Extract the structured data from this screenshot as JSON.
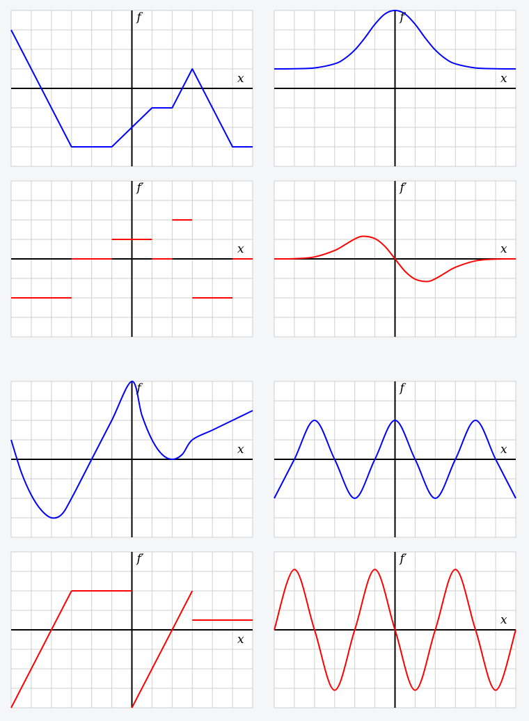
{
  "chart_data": [
    {
      "type": "line",
      "xlabel": "x",
      "ylabel": "f",
      "xlim": [
        -6,
        6
      ],
      "ylim": [
        -4,
        4
      ],
      "color": "#0000ff",
      "series": [
        {
          "x": [
            -6,
            -3,
            -1,
            1,
            2,
            3,
            5,
            6
          ],
          "y": [
            3,
            -3,
            -3,
            -1,
            -1,
            1,
            -3,
            -3
          ]
        }
      ]
    },
    {
      "type": "line",
      "xlabel": "x",
      "ylabel": "f",
      "xlim": [
        -6,
        6
      ],
      "ylim": [
        -4,
        4
      ],
      "color": "#0000ff",
      "series": [
        {
          "x": [
            -6,
            -5,
            -4,
            -3,
            -2.5,
            -2,
            -1.5,
            -1,
            -0.5,
            0,
            0.5,
            1,
            1.5,
            2,
            2.5,
            3,
            4,
            5,
            6
          ],
          "y": [
            1,
            1.01,
            1.05,
            1.26,
            1.53,
            1.97,
            2.59,
            3.29,
            3.82,
            4,
            3.82,
            3.29,
            2.59,
            1.97,
            1.53,
            1.26,
            1.05,
            1.01,
            1
          ]
        }
      ]
    },
    {
      "type": "line",
      "xlabel": "x",
      "ylabel": "f′",
      "xlim": [
        -6,
        6
      ],
      "ylim": [
        -4,
        4
      ],
      "color": "#ff0000",
      "series": [
        {
          "x": [
            -6,
            -3
          ],
          "y": [
            -2,
            -2
          ]
        },
        {
          "x": [
            -3,
            -1
          ],
          "y": [
            0,
            0
          ]
        },
        {
          "x": [
            -1,
            1
          ],
          "y": [
            1,
            1
          ]
        },
        {
          "x": [
            1,
            2
          ],
          "y": [
            0,
            0
          ]
        },
        {
          "x": [
            2,
            3
          ],
          "y": [
            2,
            2
          ]
        },
        {
          "x": [
            3,
            5
          ],
          "y": [
            -2,
            -2
          ]
        },
        {
          "x": [
            5,
            6
          ],
          "y": [
            0,
            0
          ]
        }
      ]
    },
    {
      "type": "line",
      "xlabel": "x",
      "ylabel": "f′",
      "xlim": [
        -6,
        6
      ],
      "ylim": [
        -4,
        4
      ],
      "color": "#ff0000",
      "series": [
        {
          "x": [
            -6,
            -5,
            -4,
            -3,
            -2.5,
            -2,
            -1.6,
            -1,
            -0.5,
            0,
            0.5,
            1,
            1.6,
            2,
            2.5,
            3,
            4,
            5,
            6
          ],
          "y": [
            0,
            0.01,
            0.1,
            0.43,
            0.72,
            1.02,
            1.16,
            1.04,
            0.64,
            0,
            -0.64,
            -1.04,
            -1.16,
            -1.02,
            -0.72,
            -0.43,
            -0.1,
            -0.01,
            0
          ]
        }
      ]
    },
    {
      "type": "line",
      "xlabel": "x",
      "ylabel": "f",
      "xlim": [
        -6,
        6
      ],
      "ylim": [
        -4,
        4
      ],
      "color": "#0000ff",
      "series": [
        {
          "x": [
            -6,
            -5.5,
            -5,
            -4.5,
            -4,
            -3.5,
            -3,
            -2,
            -1,
            0,
            0.5,
            1,
            1.5,
            2,
            2.5,
            3,
            4,
            5,
            6
          ],
          "y": [
            1,
            -0.65,
            -1.83,
            -2.61,
            -3,
            -2.84,
            -2,
            0,
            2,
            4,
            2.25,
            1,
            0.25,
            0,
            0.25,
            1,
            1.5,
            2,
            2.5
          ]
        }
      ]
    },
    {
      "type": "line",
      "xlabel": "x",
      "ylabel": "f",
      "xlim": [
        -6,
        6
      ],
      "ylim": [
        -4,
        4
      ],
      "color": "#0000ff",
      "series": [
        {
          "x": [
            -6,
            -5,
            -4,
            -3,
            -2,
            -1,
            0,
            1,
            2,
            3,
            4,
            5,
            6
          ],
          "y": [
            -2,
            0,
            2,
            0,
            -2,
            0,
            2,
            0,
            -2,
            0,
            2,
            0,
            -2
          ]
        }
      ]
    },
    {
      "type": "line",
      "xlabel": "x",
      "ylabel": "f′",
      "xlim": [
        -6,
        6
      ],
      "ylim": [
        -4,
        4
      ],
      "color": "#ff0000",
      "series": [
        {
          "x": [
            -6,
            -3
          ],
          "y": [
            -4,
            2
          ]
        },
        {
          "x": [
            -3,
            0
          ],
          "y": [
            2,
            2
          ]
        },
        {
          "x": [
            0,
            3
          ],
          "y": [
            -4,
            2
          ]
        },
        {
          "x": [
            3,
            6
          ],
          "y": [
            0.5,
            0.5
          ]
        }
      ]
    },
    {
      "type": "line",
      "xlabel": "x",
      "ylabel": "f′",
      "xlim": [
        -6,
        6
      ],
      "ylim": [
        -4,
        4
      ],
      "color": "#ff0000",
      "series": [
        {
          "x": [
            -6,
            -5,
            -4,
            -3,
            -2,
            -1,
            0,
            1,
            2,
            3,
            4,
            5,
            6
          ],
          "y": [
            0,
            3.1,
            0,
            -3.1,
            0,
            3.1,
            0,
            -3.1,
            0,
            3.1,
            0,
            -3.1,
            0
          ]
        }
      ]
    }
  ]
}
